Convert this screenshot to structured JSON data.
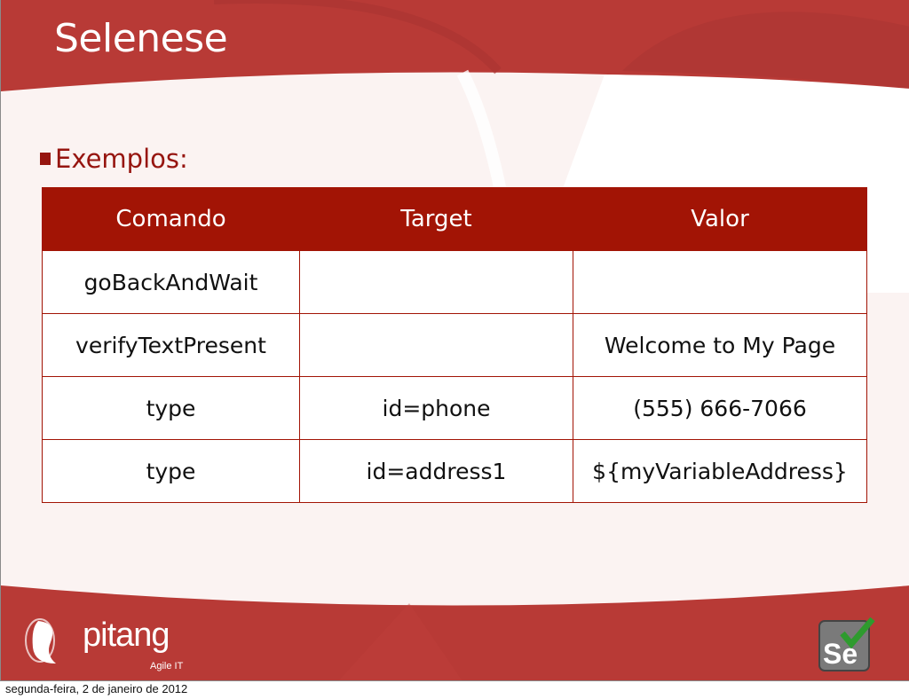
{
  "slide": {
    "title": "Selenese",
    "bullet": "Exemplos:",
    "table": {
      "headers": [
        "Comando",
        "Target",
        "Valor"
      ],
      "rows": [
        [
          "goBackAndWait",
          "",
          ""
        ],
        [
          "verifyTextPresent",
          "",
          "Welcome to My Page"
        ],
        [
          "type",
          "id=phone",
          "(555) 666-7066"
        ],
        [
          "type",
          "id=address1",
          "${myVariableAddress}"
        ]
      ]
    },
    "logo": {
      "name": "pitang",
      "tagline": "Agile IT"
    },
    "selenium_logo": "Se"
  },
  "footer_date": "segunda-feira, 2 de janeiro de 2012",
  "colors": {
    "brand_red": "#b83a36",
    "header_red": "#a21405",
    "text_red": "#961510"
  }
}
